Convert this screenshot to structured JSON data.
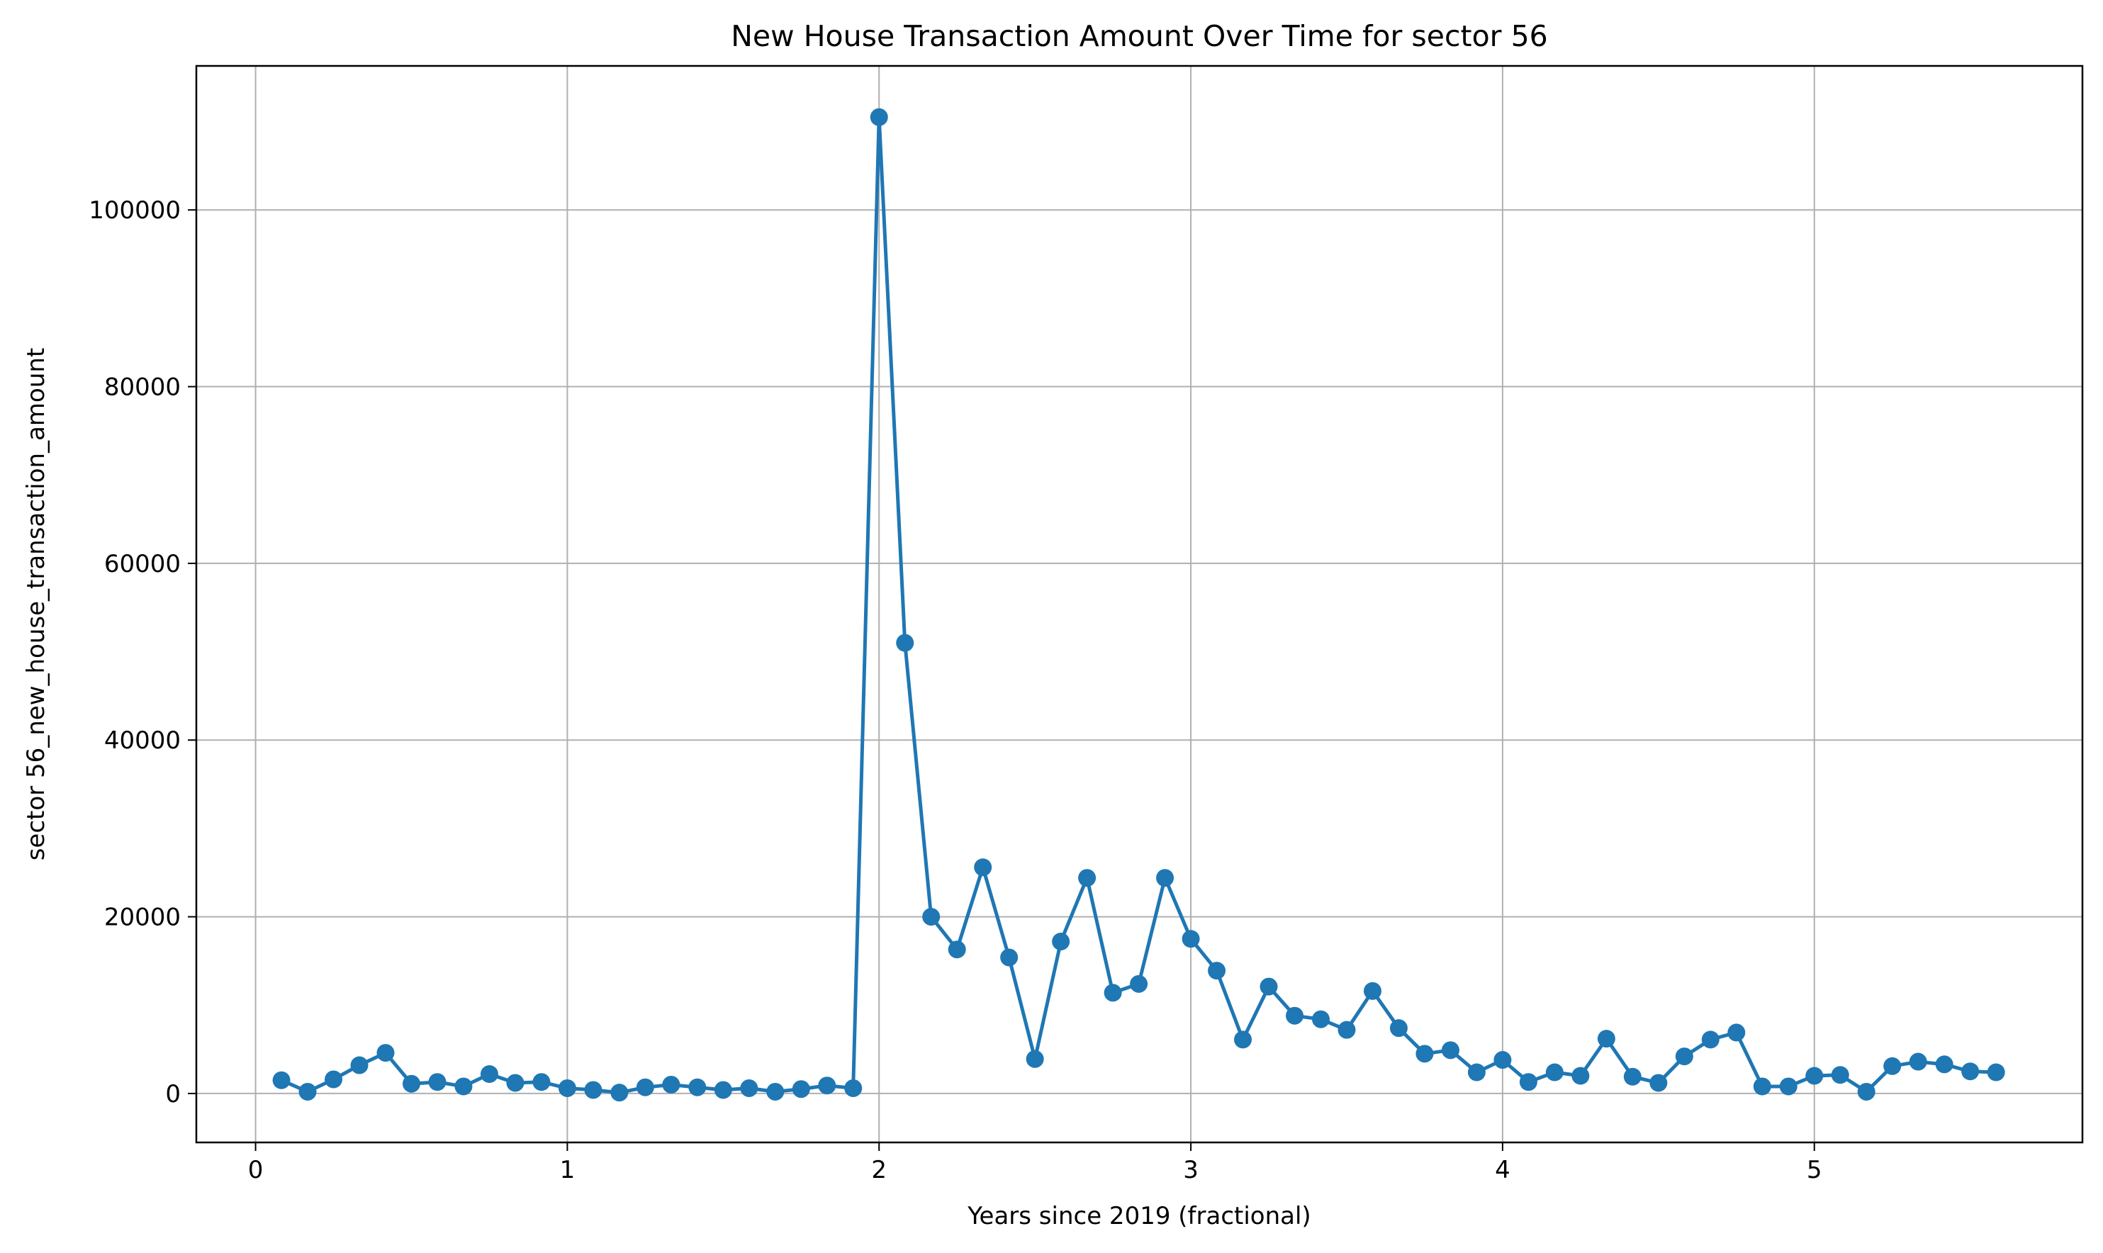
{
  "chart_data": {
    "type": "line",
    "title": "New House Transaction Amount Over Time for sector 56",
    "xlabel": "Years since 2019 (fractional)",
    "ylabel": "sector 56_new_house_transaction_amount",
    "xlim": [
      -0.19,
      5.86
    ],
    "ylim": [
      -5540,
      116300
    ],
    "xticks": [
      0,
      1,
      2,
      3,
      4,
      5
    ],
    "yticks": [
      0,
      20000,
      40000,
      60000,
      80000,
      100000
    ],
    "grid": true,
    "legend": "none",
    "series": [
      {
        "color": "#1f77b4",
        "marker": "circle",
        "x": [
          0.083,
          0.167,
          0.25,
          0.333,
          0.417,
          0.5,
          0.583,
          0.667,
          0.75,
          0.833,
          0.917,
          1.0,
          1.083,
          1.167,
          1.25,
          1.333,
          1.417,
          1.5,
          1.583,
          1.667,
          1.75,
          1.833,
          1.917,
          2.0,
          2.083,
          2.167,
          2.25,
          2.333,
          2.417,
          2.5,
          2.583,
          2.667,
          2.75,
          2.833,
          2.917,
          3.0,
          3.083,
          3.167,
          3.25,
          3.333,
          3.417,
          3.5,
          3.583,
          3.667,
          3.75,
          3.833,
          3.917,
          4.0,
          4.083,
          4.167,
          4.25,
          4.333,
          4.417,
          4.5,
          4.583,
          4.667,
          4.75,
          4.833,
          4.917,
          5.0,
          5.083,
          5.167,
          5.25,
          5.333,
          5.417,
          5.5,
          5.583
        ],
        "y": [
          1500,
          200,
          1600,
          3200,
          4600,
          1100,
          1300,
          800,
          2200,
          1200,
          1300,
          600,
          400,
          100,
          700,
          1000,
          700,
          400,
          600,
          200,
          500,
          900,
          600,
          110500,
          51000,
          20000,
          16300,
          25600,
          15400,
          3900,
          17200,
          24400,
          11400,
          12400,
          24400,
          17500,
          13900,
          6100,
          12100,
          8800,
          8400,
          7200,
          11600,
          7400,
          4500,
          4900,
          2400,
          3800,
          1300,
          2400,
          2000,
          6200,
          1900,
          1200,
          4200,
          6100,
          6900,
          800,
          800,
          2000,
          2100,
          200,
          3100,
          3600,
          3300,
          2500,
          2400
        ]
      }
    ]
  }
}
